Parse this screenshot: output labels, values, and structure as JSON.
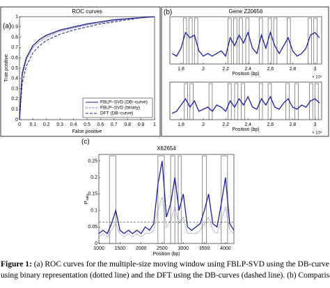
{
  "panel_labels": [
    "(a)",
    "(b)",
    "(c)"
  ],
  "caption": {
    "label": "Figure 1:",
    "lines": [
      " (a) ROC curves for the multiple-size moving window using FBLP-SVD using the DB-curve (solid",
      "using binary representation (dotted line) and the DFT using the DB-curves (dashed line). (b) Comparison of the FI"
    ]
  },
  "chart_data": [
    {
      "type": "line",
      "title": "ROC curves",
      "xlabel": "False positive",
      "ylabel": "True positive",
      "x": [
        0,
        0.02,
        0.05,
        0.1,
        0.15,
        0.2,
        0.3,
        0.4,
        0.5,
        0.6,
        0.7,
        0.8,
        0.9,
        1
      ],
      "series": [
        {
          "name": "FBLP–SVD (DB–curve)",
          "color": "#1a1a8c",
          "style": "solid",
          "values": [
            0,
            0.45,
            0.6,
            0.72,
            0.78,
            0.82,
            0.87,
            0.9,
            0.93,
            0.95,
            0.97,
            0.98,
            0.99,
            1
          ]
        },
        {
          "name": "FBLP–SVD (binary)",
          "color": "#1a1a8c",
          "style": "dotted",
          "values": [
            0,
            0.42,
            0.58,
            0.7,
            0.76,
            0.8,
            0.86,
            0.89,
            0.92,
            0.94,
            0.96,
            0.98,
            0.99,
            1
          ]
        },
        {
          "name": "DFT (DB–curve)",
          "color": "#1a1a8c",
          "style": "dashed",
          "values": [
            0,
            0.35,
            0.52,
            0.65,
            0.72,
            0.77,
            0.83,
            0.87,
            0.9,
            0.93,
            0.95,
            0.97,
            0.99,
            1
          ]
        }
      ],
      "xlim": [
        0,
        1
      ],
      "ylim": [
        0,
        1
      ],
      "xticks": [
        0,
        0.1,
        0.2,
        0.3,
        0.4,
        0.5,
        0.6,
        0.7,
        0.8,
        0.9,
        1
      ],
      "yticks": [
        0,
        0.1,
        0.2,
        0.3,
        0.4,
        0.5,
        0.6,
        0.7,
        0.8,
        0.9,
        1
      ],
      "legend": "lower right"
    },
    {
      "type": "line",
      "title": "Gene Z20656",
      "xlabel": "Position (bp)",
      "x_multiplier": "× 10⁴",
      "x": [
        1.72,
        1.76,
        1.8,
        1.84,
        1.88,
        1.92,
        1.96,
        2.0,
        2.04,
        2.08,
        2.12,
        2.16,
        2.2,
        2.24,
        2.28,
        2.32,
        2.36,
        2.4,
        2.44,
        2.48,
        2.52,
        2.56,
        2.6,
        2.64,
        2.68,
        2.72,
        2.76,
        2.8,
        2.84,
        2.88,
        2.92,
        2.96,
        3.0,
        3.04
      ],
      "series": [
        {
          "color": "#1a1ab0",
          "style": "solid",
          "values": [
            0.2,
            0.15,
            0.3,
            0.6,
            0.5,
            0.55,
            0.25,
            0.15,
            0.2,
            0.15,
            0.2,
            0.25,
            0.15,
            0.5,
            0.35,
            0.55,
            0.4,
            0.6,
            0.3,
            0.2,
            0.55,
            0.3,
            0.6,
            0.35,
            0.2,
            0.35,
            0.5,
            0.25,
            0.15,
            0.2,
            0.3,
            0.55,
            0.6,
            0.5
          ]
        }
      ],
      "windows": [
        [
          1.82,
          1.85
        ],
        [
          1.87,
          1.9
        ],
        [
          1.92,
          1.95
        ],
        [
          2.22,
          2.25
        ],
        [
          2.27,
          2.3
        ],
        [
          2.32,
          2.35
        ],
        [
          2.38,
          2.41
        ],
        [
          2.5,
          2.53
        ],
        [
          2.58,
          2.61
        ],
        [
          2.63,
          2.66
        ],
        [
          2.75,
          2.78
        ],
        [
          2.94,
          2.97
        ],
        [
          2.99,
          3.02
        ]
      ],
      "xlim": [
        1.7,
        3.06
      ],
      "ylim": [
        0,
        0.9
      ],
      "xticks": [
        1.8,
        2,
        2.2,
        2.4,
        2.6,
        2.8,
        3
      ]
    },
    {
      "type": "line",
      "xlabel": "Position (bp)",
      "x_multiplier": "× 10⁴",
      "x": [
        1.72,
        1.76,
        1.8,
        1.84,
        1.88,
        1.92,
        1.96,
        2.0,
        2.04,
        2.08,
        2.12,
        2.16,
        2.2,
        2.24,
        2.28,
        2.32,
        2.36,
        2.4,
        2.44,
        2.48,
        2.52,
        2.56,
        2.6,
        2.64,
        2.68,
        2.72,
        2.76,
        2.8,
        2.84,
        2.88,
        2.92,
        2.96,
        3.0,
        3.04
      ],
      "series": [
        {
          "color": "#1a1ab0",
          "style": "solid",
          "values": [
            0.15,
            0.2,
            0.35,
            0.5,
            0.3,
            0.45,
            0.2,
            0.25,
            0.3,
            0.2,
            0.35,
            0.3,
            0.2,
            0.45,
            0.3,
            0.5,
            0.35,
            0.55,
            0.3,
            0.25,
            0.5,
            0.35,
            0.55,
            0.3,
            0.25,
            0.4,
            0.5,
            0.3,
            0.25,
            0.35,
            0.3,
            0.45,
            0.5,
            0.4
          ]
        }
      ],
      "windows": [
        [
          1.83,
          1.86
        ],
        [
          1.88,
          1.91
        ],
        [
          2.05,
          2.08
        ],
        [
          2.22,
          2.25
        ],
        [
          2.28,
          2.31
        ],
        [
          2.34,
          2.37
        ],
        [
          2.5,
          2.53
        ],
        [
          2.58,
          2.61
        ],
        [
          2.74,
          2.77
        ],
        [
          2.82,
          2.85
        ],
        [
          2.95,
          2.98
        ],
        [
          3.0,
          3.03
        ]
      ],
      "xlim": [
        1.7,
        3.06
      ],
      "ylim": [
        0,
        0.9
      ],
      "xticks": [
        1.8,
        2,
        2.2,
        2.4,
        2.6,
        2.8,
        3
      ]
    },
    {
      "type": "line",
      "title": "X62654",
      "xlabel": "Position (bp)",
      "ylabel": "P",
      "ylabel_sub": "ratio",
      "x": [
        1000,
        1100,
        1200,
        1300,
        1400,
        1500,
        1600,
        1700,
        1800,
        1900,
        2000,
        2100,
        2200,
        2300,
        2400,
        2500,
        2600,
        2700,
        2800,
        2900,
        3000,
        3100,
        3200,
        3300,
        3400,
        3500,
        3600,
        3700,
        3800,
        3900,
        4000,
        4100,
        4200
      ],
      "series": [
        {
          "color": "#1a1ab0",
          "style": "solid",
          "values": [
            0.03,
            0.04,
            0.03,
            0.06,
            0.1,
            0.04,
            0.03,
            0.04,
            0.03,
            0.04,
            0.03,
            0.05,
            0.04,
            0.06,
            0.18,
            0.25,
            0.08,
            0.12,
            0.2,
            0.1,
            0.15,
            0.05,
            0.04,
            0.05,
            0.06,
            0.1,
            0.15,
            0.06,
            0.05,
            0.12,
            0.2,
            0.06,
            0.04
          ]
        },
        {
          "color": "#5a5a9a",
          "style": "dotted",
          "values": [
            0.02,
            0.03,
            0.02,
            0.04,
            0.06,
            0.03,
            0.02,
            0.03,
            0.02,
            0.03,
            0.02,
            0.03,
            0.03,
            0.04,
            0.1,
            0.14,
            0.05,
            0.07,
            0.11,
            0.06,
            0.08,
            0.03,
            0.03,
            0.03,
            0.04,
            0.06,
            0.08,
            0.04,
            0.03,
            0.07,
            0.11,
            0.04,
            0.03
          ]
        }
      ],
      "windows": [
        [
          1250,
          1400
        ],
        [
          2400,
          2550
        ],
        [
          2700,
          2800
        ],
        [
          2880,
          2950
        ],
        [
          3450,
          3550
        ],
        [
          3900,
          4050
        ]
      ],
      "threshold": 0.065,
      "xlim": [
        1000,
        4200
      ],
      "ylim": [
        0,
        0.27
      ],
      "xticks": [
        1000,
        1500,
        2000,
        2500,
        3000,
        3500,
        4000
      ],
      "yticks": [
        0,
        0.05,
        0.1,
        0.15,
        0.2,
        0.25
      ]
    }
  ]
}
